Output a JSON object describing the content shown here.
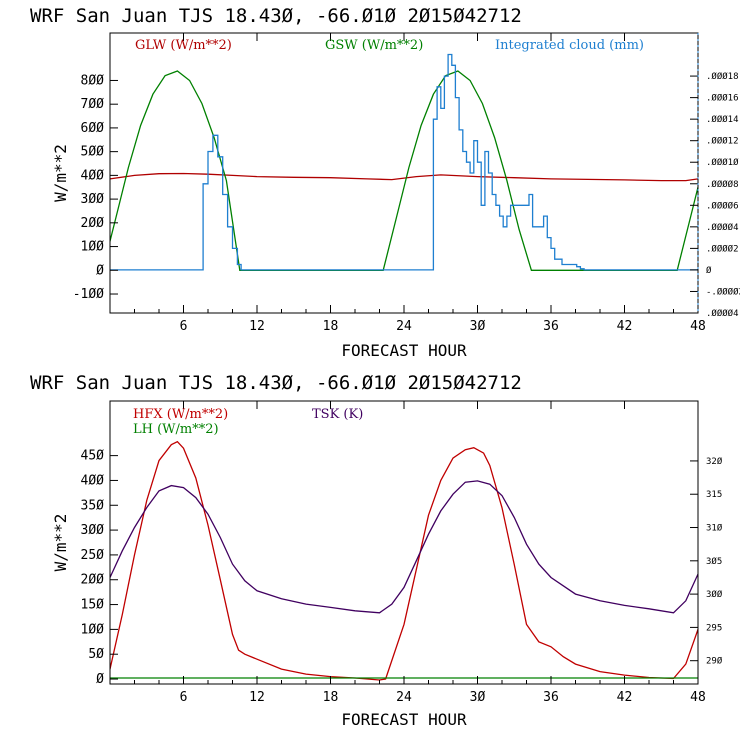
{
  "chart_data": [
    {
      "type": "line",
      "title": "WRF  San Juan TJS  18.43Ø, -66.Ø1Ø  2Ø15Ø42712",
      "xlabel": "FORECAST HOUR",
      "ylabel": "W/m**2",
      "xlim": [
        0,
        48
      ],
      "ylim": [
        -180,
        1000
      ],
      "x_ticks": [
        6,
        12,
        18,
        24,
        30,
        36,
        42,
        48
      ],
      "x_tick_labels": [
        "6",
        "12",
        "18",
        "24",
        "3Ø",
        "36",
        "42",
        "48"
      ],
      "y_ticks": [
        -100,
        0,
        100,
        200,
        300,
        400,
        500,
        600,
        700,
        800
      ],
      "y_tick_labels": [
        "-1ØØ",
        "Ø",
        "1ØØ",
        "2ØØ",
        "3ØØ",
        "4ØØ",
        "5ØØ",
        "6ØØ",
        "7ØØ",
        "8ØØ"
      ],
      "y2lim": [
        -4e-05,
        0.00022
      ],
      "y2_ticks": [
        -4e-05,
        -2e-05,
        0,
        2e-05,
        4e-05,
        6e-05,
        8e-05,
        0.0001,
        0.00012,
        0.00014,
        0.00016,
        0.00018
      ],
      "y2_tick_labels": [
        ".ØØØØ4",
        "-.ØØØØ2",
        "Ø",
        ".ØØØØ2",
        ".ØØØØ4",
        ".ØØØØ6",
        ".ØØØØ8",
        ".ØØØ1Ø",
        ".ØØØ12",
        ".ØØØ14",
        ".ØØØ16",
        ".ØØØ18"
      ],
      "grid": false,
      "series": [
        {
          "name": "GLW (W/m**2)",
          "color": "#b00000",
          "axis": "left",
          "x": [
            0,
            2,
            4,
            6,
            8,
            10,
            12,
            15,
            18,
            21,
            23,
            25,
            27,
            30,
            33,
            36,
            39,
            42,
            45,
            47,
            48
          ],
          "y": [
            385,
            400,
            407,
            408,
            405,
            400,
            395,
            392,
            390,
            385,
            382,
            395,
            402,
            395,
            390,
            385,
            383,
            381,
            378,
            378,
            385
          ]
        },
        {
          "name": "GSW (W/m**2)",
          "color": "#008000",
          "axis": "left",
          "x": [
            -0.6,
            0.5,
            1.5,
            2.5,
            3.5,
            4.5,
            5.5,
            6.5,
            7.5,
            8.5,
            9.5,
            10.6,
            22.3,
            23.4,
            24.4,
            25.4,
            26.4,
            27.4,
            28.4,
            29.4,
            30.4,
            31.4,
            32.4,
            33.4,
            34.4,
            35.5,
            46.3,
            47.4,
            48.4
          ],
          "y": [
            0,
            225,
            433,
            610,
            742,
            820,
            840,
            800,
            703,
            559,
            378,
            0,
            0,
            225,
            433,
            610,
            742,
            820,
            840,
            800,
            703,
            559,
            378,
            172,
            0,
            0,
            0,
            225,
            433
          ]
        },
        {
          "name": "Integrated cloud (mm)",
          "color": "#1e7fd0",
          "axis": "right",
          "x": [
            0,
            7.2,
            7.6,
            8,
            8.4,
            8.8,
            9.2,
            9.6,
            10,
            10.4,
            10.7,
            26.2,
            26.4,
            26.7,
            27.0,
            27.3,
            27.6,
            27.9,
            28.2,
            28.5,
            28.8,
            29.1,
            29.4,
            29.7,
            30.0,
            30.3,
            30.6,
            30.9,
            31.2,
            31.5,
            31.8,
            32.1,
            32.4,
            32.7,
            33.0,
            33.3,
            33.6,
            33.9,
            34.2,
            34.5,
            34.8,
            35.1,
            35.4,
            35.7,
            36.0,
            36.3,
            36.6,
            36.9,
            37.2,
            37.5,
            37.8,
            38.1,
            38.4,
            38.7,
            48
          ],
          "y": [
            0,
            0,
            8e-05,
            0.00011,
            0.000125,
            0.000105,
            7e-05,
            4e-05,
            2e-05,
            5e-06,
            0,
            0,
            0.00014,
            0.00017,
            0.00015,
            0.00018,
            0.0002,
            0.00019,
            0.00016,
            0.00013,
            0.00011,
            0.0001,
            9e-05,
            0.00012,
            0.0001,
            6e-05,
            0.00011,
            9e-05,
            7e-05,
            6e-05,
            5e-05,
            4e-05,
            5e-05,
            6e-05,
            6e-05,
            6e-05,
            6e-05,
            6e-05,
            7e-05,
            4e-05,
            4e-05,
            4e-05,
            5e-05,
            3e-05,
            2e-05,
            1e-05,
            1e-05,
            5e-06,
            5e-06,
            5e-06,
            5e-06,
            3e-06,
            1e-06,
            0,
            0
          ]
        }
      ]
    },
    {
      "type": "line",
      "title": "WRF  San Juan TJS  18.43Ø, -66.Ø1Ø  2Ø15Ø42712",
      "xlabel": "FORECAST HOUR",
      "ylabel": "W/m**2",
      "xlim": [
        0,
        48
      ],
      "ylim": [
        -10,
        560
      ],
      "x_ticks": [
        6,
        12,
        18,
        24,
        30,
        36,
        42,
        48
      ],
      "x_tick_labels": [
        "6",
        "12",
        "18",
        "24",
        "3Ø",
        "36",
        "42",
        "48"
      ],
      "y_ticks": [
        0,
        50,
        100,
        150,
        200,
        250,
        300,
        350,
        400,
        450
      ],
      "y_tick_labels": [
        "Ø",
        "5Ø",
        "1ØØ",
        "15Ø",
        "2ØØ",
        "25Ø",
        "3ØØ",
        "35Ø",
        "4ØØ",
        "45Ø"
      ],
      "y2lim": [
        286.5,
        329
      ],
      "y2_ticks": [
        290,
        295,
        300,
        305,
        310,
        315,
        320
      ],
      "y2_tick_labels": [
        "29Ø",
        "295",
        "3ØØ",
        "3Ø5",
        "31Ø",
        "315",
        "32Ø"
      ],
      "grid": false,
      "series": [
        {
          "name": "HFX (W/m**2)",
          "color": "#c00000",
          "axis": "left",
          "x": [
            0,
            1,
            2,
            3,
            4,
            5,
            5.5,
            6,
            7,
            8,
            9,
            10,
            10.5,
            11,
            12,
            14,
            16,
            18,
            20,
            22,
            22.5,
            24,
            26,
            27,
            28,
            29,
            29.7,
            30.5,
            31,
            32,
            33,
            34,
            35,
            36,
            37,
            38,
            40,
            42,
            44,
            46,
            47,
            48
          ],
          "y": [
            20,
            130,
            250,
            360,
            440,
            472,
            478,
            465,
            405,
            310,
            200,
            90,
            58,
            50,
            40,
            20,
            10,
            5,
            2,
            -2,
            0,
            110,
            330,
            400,
            445,
            462,
            466,
            455,
            430,
            345,
            230,
            110,
            75,
            65,
            45,
            30,
            15,
            8,
            3,
            1,
            30,
            100
          ]
        },
        {
          "name": "LH (W/m**2)",
          "color": "#008000",
          "axis": "left",
          "x": [
            0,
            48
          ],
          "y": [
            2,
            2
          ]
        },
        {
          "name": "TSK (K)",
          "color": "#400060",
          "axis": "right",
          "x": [
            0,
            1,
            2,
            3,
            4,
            5,
            6,
            7,
            8,
            9,
            10,
            11,
            12,
            14,
            16,
            18,
            20,
            22,
            23,
            24,
            25,
            26,
            27,
            28,
            29,
            30,
            31,
            32,
            33,
            34,
            35,
            36,
            38,
            40,
            42,
            44,
            46,
            47,
            48
          ],
          "y": [
            302.5,
            306.5,
            310,
            313,
            315.5,
            316.3,
            316,
            314.5,
            312,
            308.5,
            304.5,
            302,
            300.5,
            299.3,
            298.5,
            298,
            297.5,
            297.2,
            298.5,
            301,
            305,
            309,
            312.5,
            315,
            316.8,
            317,
            316.5,
            314.8,
            311.5,
            307.5,
            304.5,
            302.5,
            300,
            299,
            298.3,
            297.8,
            297.2,
            299,
            303
          ]
        }
      ]
    }
  ]
}
